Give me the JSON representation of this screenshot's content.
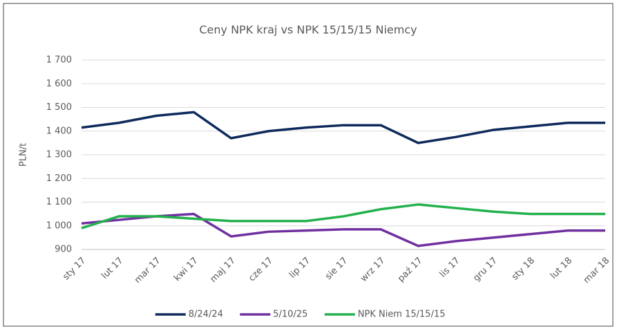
{
  "chart_data": {
    "type": "line",
    "title": "Ceny NPK kraj vs NPK 15/15/15 Niemcy",
    "y_label": "PLN/t",
    "categories": [
      "sty 17",
      "lut 17",
      "mar 17",
      "kwi 17",
      "maj 17",
      "cze 17",
      "lip 17",
      "sie 17",
      "wrz 17",
      "paź 17",
      "lis 17",
      "gru 17",
      "sty 18",
      "lut 18",
      "mar 18"
    ],
    "series": [
      {
        "name": "8/24/24",
        "color": "#0e2a5c",
        "values": [
          1415,
          1435,
          1465,
          1480,
          1370,
          1400,
          1415,
          1425,
          1425,
          1350,
          1375,
          1405,
          1420,
          1435,
          1435
        ]
      },
      {
        "name": "5/10/25",
        "color": "#7030a0",
        "values": [
          1010,
          1025,
          1040,
          1050,
          955,
          975,
          980,
          985,
          985,
          915,
          935,
          950,
          965,
          980,
          980
        ]
      },
      {
        "name": "NPK Niem 15/15/15",
        "color": "#22b14c",
        "values": [
          990,
          1040,
          1040,
          1030,
          1020,
          1020,
          1020,
          1040,
          1070,
          1090,
          1075,
          1060,
          1050,
          1050,
          1050
        ]
      }
    ],
    "ylim": [
      900,
      1700
    ],
    "yticks": [
      900,
      {
        "value": 1000,
        "label": "1 000"
      },
      {
        "value": 1100,
        "label": "1 100"
      },
      {
        "value": 1200,
        "label": "1 200"
      },
      {
        "value": 1300,
        "label": "1 300"
      },
      {
        "value": 1400,
        "label": "1 400"
      },
      {
        "value": 1500,
        "label": "1 500"
      },
      {
        "value": 1600,
        "label": "1 600"
      },
      {
        "value": 1700,
        "label": "1 700"
      }
    ],
    "grid": true,
    "legend": "bottom"
  }
}
